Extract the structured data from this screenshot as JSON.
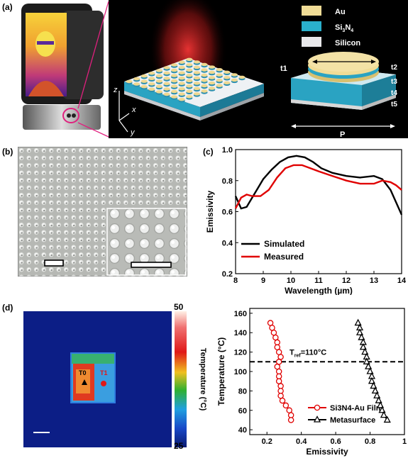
{
  "panel_labels": {
    "a": "(a)",
    "b": "(b)",
    "c": "(c)",
    "d": "(d)"
  },
  "panel_a": {
    "legend": [
      {
        "label": "Au",
        "color": "#f0dc96"
      },
      {
        "label": "Si3N4",
        "color": "#2ab0cc"
      },
      {
        "label": "Silicon",
        "color": "#e8e8ea"
      }
    ],
    "axes": {
      "z": "z",
      "x": "x",
      "y": "y"
    },
    "thickness_labels": [
      "t1",
      "t2",
      "t3",
      "t4",
      "t5"
    ],
    "period_label": "P"
  },
  "chart_data": [
    {
      "panel": "c",
      "type": "line",
      "xlabel": "Wavelength (µm)",
      "ylabel": "Emissivity",
      "xlim": [
        8,
        14
      ],
      "ylim": [
        0.2,
        1.0
      ],
      "xticks": [
        8,
        9,
        10,
        11,
        12,
        13,
        14
      ],
      "yticks": [
        0.2,
        0.4,
        0.6,
        0.8,
        1.0
      ],
      "legend_position": "bottom-left",
      "series": [
        {
          "name": "Simulated",
          "color": "#000000",
          "x": [
            8.0,
            8.2,
            8.4,
            8.6,
            8.8,
            9.0,
            9.3,
            9.6,
            9.9,
            10.2,
            10.5,
            10.8,
            11.1,
            11.5,
            12.0,
            12.5,
            13.0,
            13.3,
            13.6,
            13.8,
            14.0
          ],
          "y": [
            0.7,
            0.62,
            0.63,
            0.69,
            0.75,
            0.81,
            0.87,
            0.92,
            0.95,
            0.96,
            0.95,
            0.92,
            0.88,
            0.85,
            0.83,
            0.82,
            0.83,
            0.81,
            0.74,
            0.66,
            0.58
          ]
        },
        {
          "name": "Measured",
          "color": "#e00000",
          "x": [
            8.0,
            8.2,
            8.4,
            8.6,
            8.9,
            9.2,
            9.5,
            9.8,
            10.1,
            10.4,
            10.7,
            11.0,
            11.5,
            12.0,
            12.5,
            13.0,
            13.3,
            13.6,
            13.8,
            14.0
          ],
          "y": [
            0.62,
            0.69,
            0.71,
            0.7,
            0.7,
            0.74,
            0.82,
            0.88,
            0.9,
            0.9,
            0.88,
            0.86,
            0.83,
            0.8,
            0.78,
            0.78,
            0.8,
            0.79,
            0.77,
            0.74
          ]
        }
      ]
    },
    {
      "panel": "d",
      "type": "line",
      "xlabel": "Emissivity",
      "ylabel": "Temperature (°C)",
      "xlim": [
        0.1,
        1.0
      ],
      "ylim": [
        35,
        165
      ],
      "xticks": [
        0.2,
        0.4,
        0.6,
        0.8,
        1.0
      ],
      "yticks": [
        40,
        60,
        80,
        100,
        120,
        140,
        160
      ],
      "reference_line": {
        "y": 110,
        "label": "Tref=110°C"
      },
      "legend_position": "bottom-right",
      "series": [
        {
          "name": "Si3N4-Au Film",
          "color": "#e00000",
          "marker": "circle",
          "x": [
            0.22,
            0.23,
            0.24,
            0.25,
            0.26,
            0.26,
            0.27,
            0.28,
            0.27,
            0.26,
            0.27,
            0.27,
            0.27,
            0.28,
            0.28,
            0.28,
            0.29,
            0.31,
            0.33,
            0.34,
            0.34
          ],
          "y": [
            150,
            145,
            140,
            135,
            130,
            125,
            120,
            115,
            110,
            105,
            100,
            95,
            90,
            85,
            80,
            75,
            70,
            65,
            60,
            55,
            50
          ]
        },
        {
          "name": "Metasurface",
          "color": "#000000",
          "marker": "triangle",
          "x": [
            0.73,
            0.74,
            0.74,
            0.75,
            0.76,
            0.76,
            0.77,
            0.78,
            0.78,
            0.79,
            0.8,
            0.81,
            0.81,
            0.82,
            0.83,
            0.84,
            0.85,
            0.86,
            0.87,
            0.88,
            0.9
          ],
          "y": [
            150,
            145,
            140,
            135,
            130,
            125,
            120,
            115,
            110,
            105,
            100,
            95,
            90,
            85,
            80,
            75,
            70,
            65,
            60,
            55,
            50
          ]
        }
      ]
    }
  ],
  "panel_d_image": {
    "colorbar_max": "50",
    "colorbar_min": "25",
    "colorbar_label": "Temperature (°C)",
    "marker_t0": "T0",
    "marker_t1": "T1"
  }
}
